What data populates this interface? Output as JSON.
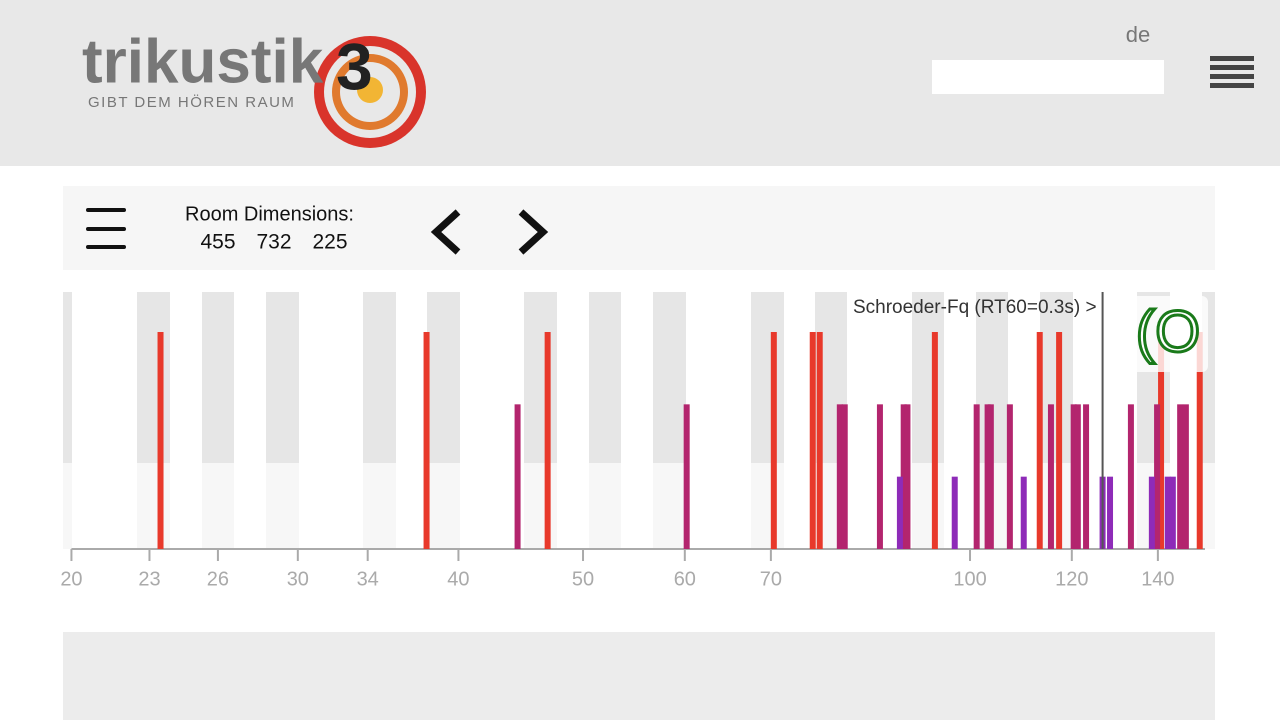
{
  "header": {
    "logo": "trikustik",
    "logo_mark": "3",
    "tagline": "GIBT DEM HÖREN RAUM",
    "language": "de"
  },
  "toolbar": {
    "label": "Room Dimensions:",
    "dimensions": [
      455,
      732,
      225
    ]
  },
  "chart_data": {
    "type": "bar",
    "log_x": true,
    "xlim": [
      19.7,
      153.7
    ],
    "xticks": [
      20,
      23,
      26,
      30,
      34,
      40,
      50,
      60,
      70,
      100,
      120,
      140
    ],
    "ylim": [
      0,
      3
    ],
    "series": [
      {
        "color": "#e8392b",
        "x": [
          23.46,
          37.78,
          46.93,
          70.37,
          75.45,
          76.4,
          93.9,
          113.3,
          117.3,
          140.8,
          150.9
        ],
        "values": [
          3,
          3,
          3,
          3,
          3,
          3,
          3,
          3,
          3,
          3,
          3
        ]
      },
      {
        "color": "#b3256e",
        "x": [
          44.47,
          60.2,
          79.2,
          79.9,
          85.1,
          88.8,
          89.4,
          101.2,
          103.2,
          103.8,
          107.4,
          115.6,
          120.4,
          121.3,
          123.1,
          133.4,
          139.8,
          145.7,
          147.2
        ],
        "values": [
          2,
          2,
          2,
          2,
          2,
          2,
          2,
          2,
          2,
          2,
          2,
          2,
          2,
          2,
          2,
          2,
          2,
          2,
          2
        ]
      },
      {
        "color": "#8e2bb8",
        "x": [
          88.2,
          97.3,
          110.1,
          126.8,
          128.5,
          138.5,
          142.5,
          143.8
        ],
        "values": [
          1,
          1,
          1,
          1,
          1,
          1,
          1,
          1
        ]
      }
    ],
    "schroeder": {
      "label": "Schroeder-Fq (RT60=0.3s) >",
      "x": 126.8
    }
  }
}
